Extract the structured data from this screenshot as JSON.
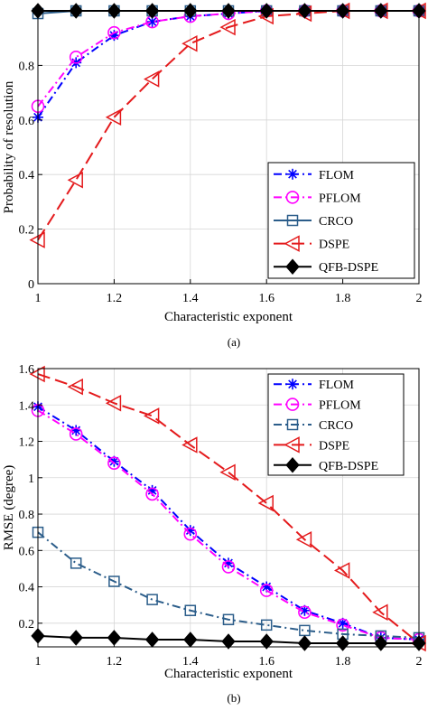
{
  "chart_data": [
    {
      "type": "line",
      "caption": "(a)",
      "xlabel": "Characteristic exponent",
      "ylabel": "Probability of resolution",
      "xlim": [
        1,
        2
      ],
      "ylim": [
        0,
        1
      ],
      "xticks": [
        1,
        1.2,
        1.4,
        1.6,
        1.8,
        2
      ],
      "xtick_labels": [
        "1",
        "1.2",
        "1.4",
        "1.6",
        "1.8",
        "2"
      ],
      "yticks": [
        0,
        0.2,
        0.4,
        0.6,
        0.8
      ],
      "ytick_labels": [
        "0",
        "0.2",
        "0.4",
        "0.6",
        "0.8"
      ],
      "grid": true,
      "legend_position": "bottom-right",
      "x": [
        1,
        1.1,
        1.2,
        1.3,
        1.4,
        1.5,
        1.6,
        1.7,
        1.8,
        1.9,
        2
      ],
      "series": [
        {
          "name": "FLOM",
          "color": "#0000ff",
          "dash": "dash-dot",
          "marker": "asterisk",
          "values": [
            0.61,
            0.81,
            0.91,
            0.96,
            0.98,
            0.99,
            1.0,
            1.0,
            1.0,
            1.0,
            1.0
          ]
        },
        {
          "name": "PFLOM",
          "color": "#ff00ff",
          "dash": "dash-dot",
          "marker": "circle",
          "values": [
            0.65,
            0.83,
            0.92,
            0.96,
            0.98,
            0.99,
            1.0,
            1.0,
            1.0,
            1.0,
            1.0
          ]
        },
        {
          "name": "CRCO",
          "color": "#2b5d8a",
          "dash": "solid",
          "marker": "square",
          "values": [
            0.99,
            1.0,
            1.0,
            1.0,
            1.0,
            1.0,
            1.0,
            1.0,
            1.0,
            1.0,
            1.0
          ]
        },
        {
          "name": "DSPE",
          "color": "#e41a1c",
          "dash": "dashed",
          "marker": "triangle-left",
          "values": [
            0.16,
            0.38,
            0.61,
            0.75,
            0.88,
            0.94,
            0.98,
            0.99,
            1.0,
            1.0,
            1.0
          ]
        },
        {
          "name": "QFB-DSPE",
          "color": "#000000",
          "dash": "solid",
          "marker": "diamond",
          "values": [
            1.0,
            1.0,
            1.0,
            1.0,
            1.0,
            1.0,
            1.0,
            1.0,
            1.0,
            1.0,
            1.0
          ]
        }
      ]
    },
    {
      "type": "line",
      "caption": "(b)",
      "xlabel": "Characteristic exponent",
      "ylabel": "RMSE (degree)",
      "xlim": [
        1,
        2
      ],
      "ylim": [
        0.07,
        1.6
      ],
      "xticks": [
        1,
        1.2,
        1.4,
        1.6,
        1.8,
        2
      ],
      "xtick_labels": [
        "1",
        "1.2",
        "1.4",
        "1.6",
        "1.8",
        "2"
      ],
      "yticks": [
        0.2,
        0.4,
        0.6,
        0.8,
        1,
        1.2,
        1.4,
        1.6
      ],
      "ytick_labels": [
        "0.2",
        "0.4",
        "0.6",
        "0.8",
        "1",
        "1.2",
        "1.4",
        "1.6"
      ],
      "grid": true,
      "legend_position": "top-right",
      "x": [
        1,
        1.1,
        1.2,
        1.3,
        1.4,
        1.5,
        1.6,
        1.7,
        1.8,
        1.9,
        2
      ],
      "series": [
        {
          "name": "FLOM",
          "color": "#0000ff",
          "dash": "dash-dot",
          "marker": "asterisk",
          "values": [
            1.39,
            1.26,
            1.09,
            0.93,
            0.71,
            0.53,
            0.4,
            0.27,
            0.2,
            0.12,
            0.11
          ]
        },
        {
          "name": "PFLOM",
          "color": "#ff00ff",
          "dash": "dash-dot",
          "marker": "circle",
          "values": [
            1.37,
            1.24,
            1.08,
            0.91,
            0.69,
            0.51,
            0.38,
            0.26,
            0.19,
            0.12,
            0.11
          ]
        },
        {
          "name": "CRCO",
          "color": "#2b5d8a",
          "dash": "dash-dot",
          "marker": "square",
          "values": [
            0.7,
            0.53,
            0.43,
            0.33,
            0.27,
            0.22,
            0.19,
            0.16,
            0.14,
            0.13,
            0.12
          ]
        },
        {
          "name": "DSPE",
          "color": "#e41a1c",
          "dash": "dashed",
          "marker": "triangle-left",
          "values": [
            1.57,
            1.5,
            1.41,
            1.34,
            1.18,
            1.03,
            0.86,
            0.66,
            0.49,
            0.26,
            0.09
          ]
        },
        {
          "name": "QFB-DSPE",
          "color": "#000000",
          "dash": "solid",
          "marker": "diamond",
          "values": [
            0.13,
            0.12,
            0.12,
            0.11,
            0.11,
            0.1,
            0.1,
            0.09,
            0.09,
            0.09,
            0.09
          ]
        }
      ]
    }
  ]
}
